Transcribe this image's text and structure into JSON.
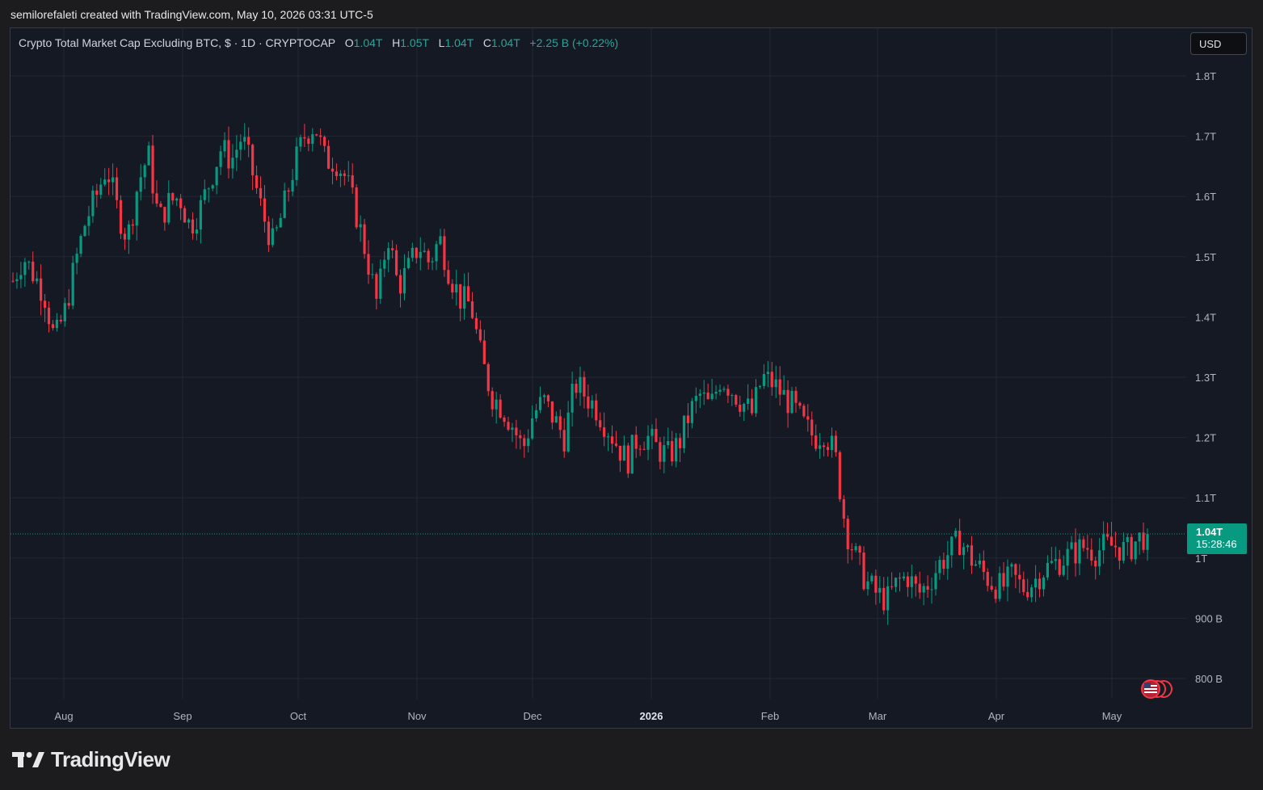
{
  "header": {
    "created_by": "semilorefaleti created with TradingView.com, May 10, 2026 03:31 UTC-5"
  },
  "legend": {
    "symbol": "Crypto Total Market Cap Excluding BTC, $ · 1D · CRYPTOCAP",
    "o_label": "O",
    "o_value": "1.04T",
    "h_label": "H",
    "h_value": "1.05T",
    "l_label": "L",
    "l_value": "1.04T",
    "c_label": "C",
    "c_value": "1.04T",
    "change": "+2.25 B (+0.22%)"
  },
  "currency": {
    "label": "USD"
  },
  "last_price": {
    "value": "1.04T",
    "countdown": "15:28:46"
  },
  "brand": {
    "name": "TradingView"
  },
  "colors": {
    "up": "#089981",
    "down": "#f23645",
    "background": "#151924",
    "grid": "#232733",
    "axis_text": "#b2b5be",
    "price_line": "#089981"
  },
  "chart_data": {
    "type": "candlestick",
    "title": "Crypto Total Market Cap Excluding BTC, $ · 1D · CRYPTOCAP",
    "y_ticks": [
      {
        "value": 1.8,
        "label": "1.8T"
      },
      {
        "value": 1.7,
        "label": "1.7T"
      },
      {
        "value": 1.6,
        "label": "1.6T"
      },
      {
        "value": 1.5,
        "label": "1.5T"
      },
      {
        "value": 1.4,
        "label": "1.4T"
      },
      {
        "value": 1.3,
        "label": "1.3T"
      },
      {
        "value": 1.2,
        "label": "1.2T"
      },
      {
        "value": 1.1,
        "label": "1.1T"
      },
      {
        "value": 1.0,
        "label": "1T"
      },
      {
        "value": 0.9,
        "label": "900 B"
      },
      {
        "value": 0.8,
        "label": "800 B"
      }
    ],
    "x_ticks": [
      {
        "label": "Aug",
        "bold": false
      },
      {
        "label": "Sep",
        "bold": false
      },
      {
        "label": "Oct",
        "bold": false
      },
      {
        "label": "Nov",
        "bold": false
      },
      {
        "label": "Dec",
        "bold": false
      },
      {
        "label": "2026",
        "bold": true
      },
      {
        "label": "Feb",
        "bold": false
      },
      {
        "label": "Mar",
        "bold": false
      },
      {
        "label": "Apr",
        "bold": false
      },
      {
        "label": "May",
        "bold": false
      }
    ],
    "y_range": [
      0.77,
      1.83
    ],
    "last_close": 1.04,
    "close_path": [
      [
        1.46,
        1.5,
        1.47,
        1.44,
        1.36,
        1.41,
        1.49,
        1.56,
        1.6,
        1.65,
        1.58,
        1.53,
        1.62,
        1.67,
        1.56,
        1.59,
        1.6,
        1.55,
        1.58,
        1.63,
        1.68,
        1.66,
        1.7,
        1.64,
        1.57,
        1.52,
        1.58,
        1.65,
        1.7,
        1.72,
        1.66
      ],
      [
        1.66,
        1.63,
        1.57,
        1.5,
        1.42,
        1.54,
        1.45,
        1.48,
        1.52,
        1.49,
        1.53,
        1.47,
        1.43,
        1.42,
        1.33,
        1.27,
        1.25,
        1.22,
        1.18,
        1.24,
        1.26,
        1.23,
        1.2,
        1.29,
        1.27,
        1.25,
        1.22,
        1.19,
        1.16,
        1.2
      ],
      [
        1.2,
        1.18,
        1.17,
        1.19,
        1.24,
        1.27,
        1.25,
        1.3,
        1.28,
        1.26,
        1.24,
        1.3,
        1.29,
        1.27,
        1.25,
        1.22,
        1.2,
        1.21,
        1.17,
        1.05,
        1.0,
        0.96,
        0.94,
        0.93,
        0.96,
        0.97,
        0.94,
        0.96,
        0.99,
        1.01,
        1.03
      ],
      [
        1.0,
        0.98,
        0.96,
        0.95,
        0.97,
        0.95,
        0.96,
        0.98,
        0.99,
        1.0,
        1.01,
        1.02,
        1.01,
        1.02,
        1.02,
        1.01,
        1.03,
        1.04
      ]
    ]
  }
}
